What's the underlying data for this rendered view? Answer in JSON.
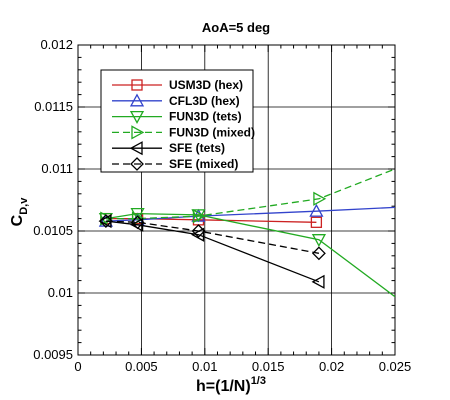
{
  "chart_data": {
    "type": "line",
    "title": "AoA=5 deg",
    "xlabel": {
      "main": "h=(1/N)",
      "sup": "1/3"
    },
    "ylabel": {
      "main": "C",
      "sub": "D,v"
    },
    "xlim": [
      0,
      0.025
    ],
    "ylim": [
      0.0095,
      0.012
    ],
    "xticks": [
      "0",
      "0.005",
      "0.01",
      "0.015",
      "0.02",
      "0.025"
    ],
    "yticks": [
      "0.0095",
      "0.01",
      "0.0105",
      "0.011",
      "0.0115",
      "0.012"
    ],
    "grid": true,
    "legend_position": "top-left",
    "series": [
      {
        "name": "USM3D (hex)",
        "color": "#cc2222",
        "dash": "solid",
        "marker": "square",
        "x": [
          0.0022,
          0.0047,
          0.0095,
          0.0188
        ],
        "y": [
          0.0106,
          0.0106,
          0.01059,
          0.01057
        ]
      },
      {
        "name": "CFL3D (hex)",
        "color": "#3344cc",
        "dash": "solid",
        "marker": "triangle-up",
        "x": [
          0.0022,
          0.0047,
          0.0095,
          0.0188,
          0.025
        ],
        "y": [
          0.01058,
          0.01059,
          0.01062,
          0.01066,
          0.01069
        ]
      },
      {
        "name": "FUN3D (tets)",
        "color": "#22aa22",
        "dash": "solid",
        "marker": "triangle-down",
        "x": [
          0.0022,
          0.0047,
          0.0095,
          0.019,
          0.025
        ],
        "y": [
          0.0106,
          0.01064,
          0.01063,
          0.01043,
          0.00997
        ]
      },
      {
        "name": "FUN3D (mixed)",
        "color": "#22aa22",
        "dash": "dashed",
        "marker": "triangle-right",
        "x": [
          0.0022,
          0.0047,
          0.0095,
          0.019,
          0.025
        ],
        "y": [
          0.0106,
          0.0106,
          0.01062,
          0.01076,
          0.011
        ]
      },
      {
        "name": "SFE (tets)",
        "color": "#000000",
        "dash": "solid",
        "marker": "triangle-left",
        "x": [
          0.0022,
          0.0047,
          0.0095,
          0.019
        ],
        "y": [
          0.01058,
          0.01055,
          0.01047,
          0.01009
        ]
      },
      {
        "name": "SFE (mixed)",
        "color": "#000000",
        "dash": "dashed",
        "marker": "diamond",
        "x": [
          0.0022,
          0.0047,
          0.0095,
          0.019
        ],
        "y": [
          0.01058,
          0.01057,
          0.0105,
          0.01032
        ]
      }
    ]
  }
}
